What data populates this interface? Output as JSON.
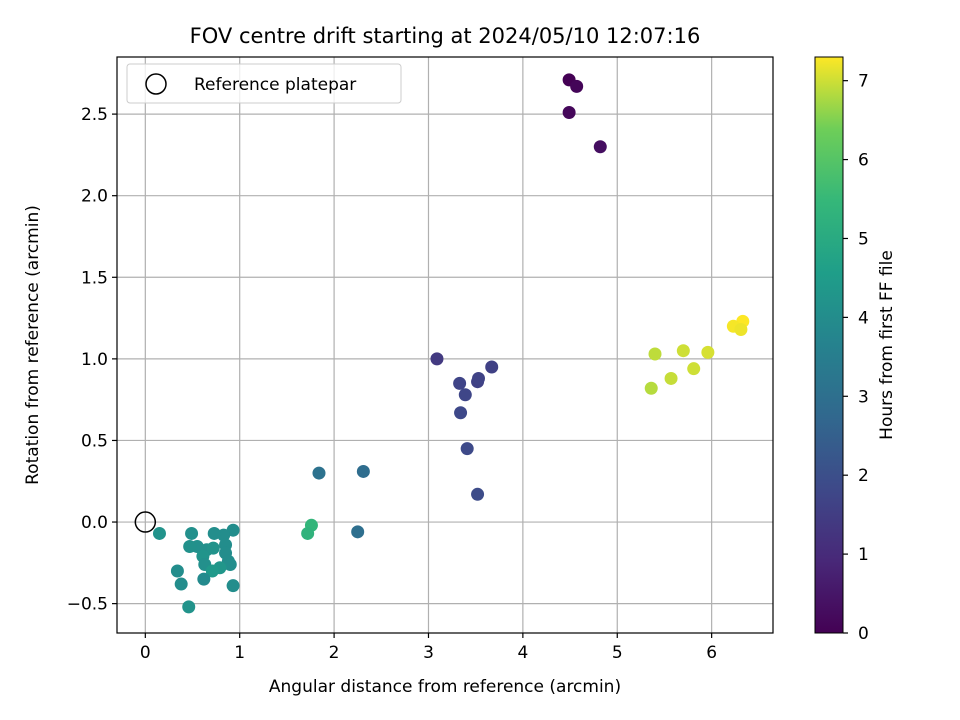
{
  "chart_data": {
    "type": "scatter",
    "title": "FOV centre drift starting at 2024/05/10 12:07:16",
    "xlabel": "Angular distance from reference (arcmin)",
    "ylabel": "Rotation from reference (arcmin)",
    "xlim": [
      -0.3,
      6.65
    ],
    "ylim": [
      -0.68,
      2.85
    ],
    "xticks": [
      0,
      1,
      2,
      3,
      4,
      5,
      6
    ],
    "yticks": [
      -0.5,
      0.0,
      0.5,
      1.0,
      1.5,
      2.0,
      2.5
    ],
    "grid": true,
    "legend": {
      "placement": "top-left",
      "entries": [
        "Reference platepar"
      ]
    },
    "reference_point": {
      "x": 0,
      "y": 0,
      "label": "Reference platepar"
    },
    "colorbar": {
      "label": "Hours from first FF file",
      "range": [
        0,
        7.3
      ],
      "ticks": [
        0,
        1,
        2,
        3,
        4,
        5,
        6,
        7
      ],
      "colormap": "viridis"
    },
    "points": [
      {
        "x": 4.49,
        "y": 2.71,
        "c": 0.0
      },
      {
        "x": 4.57,
        "y": 2.67,
        "c": 0.1
      },
      {
        "x": 4.49,
        "y": 2.51,
        "c": 0.15
      },
      {
        "x": 4.82,
        "y": 2.3,
        "c": 0.3
      },
      {
        "x": 3.09,
        "y": 1.0,
        "c": 1.4
      },
      {
        "x": 3.67,
        "y": 0.95,
        "c": 1.6
      },
      {
        "x": 3.52,
        "y": 0.86,
        "c": 1.6
      },
      {
        "x": 3.53,
        "y": 0.88,
        "c": 1.65
      },
      {
        "x": 3.33,
        "y": 0.85,
        "c": 1.7
      },
      {
        "x": 3.39,
        "y": 0.78,
        "c": 1.75
      },
      {
        "x": 3.34,
        "y": 0.67,
        "c": 1.8
      },
      {
        "x": 3.41,
        "y": 0.45,
        "c": 1.85
      },
      {
        "x": 3.52,
        "y": 0.17,
        "c": 1.9
      },
      {
        "x": 2.31,
        "y": 0.31,
        "c": 2.9
      },
      {
        "x": 1.84,
        "y": 0.3,
        "c": 3.1
      },
      {
        "x": 2.25,
        "y": -0.06,
        "c": 3.0
      },
      {
        "x": 0.93,
        "y": -0.05,
        "c": 4.0
      },
      {
        "x": 0.83,
        "y": -0.08,
        "c": 4.0
      },
      {
        "x": 0.73,
        "y": -0.07,
        "c": 4.05
      },
      {
        "x": 0.49,
        "y": -0.07,
        "c": 4.1
      },
      {
        "x": 0.15,
        "y": -0.07,
        "c": 4.2
      },
      {
        "x": 0.85,
        "y": -0.14,
        "c": 4.0
      },
      {
        "x": 0.55,
        "y": -0.15,
        "c": 4.1
      },
      {
        "x": 0.65,
        "y": -0.17,
        "c": 4.1
      },
      {
        "x": 0.47,
        "y": -0.15,
        "c": 4.15
      },
      {
        "x": 0.72,
        "y": -0.16,
        "c": 4.2
      },
      {
        "x": 0.85,
        "y": -0.19,
        "c": 4.0
      },
      {
        "x": 0.61,
        "y": -0.21,
        "c": 4.25
      },
      {
        "x": 0.88,
        "y": -0.24,
        "c": 4.0
      },
      {
        "x": 0.9,
        "y": -0.26,
        "c": 4.05
      },
      {
        "x": 0.63,
        "y": -0.26,
        "c": 4.1
      },
      {
        "x": 0.79,
        "y": -0.28,
        "c": 4.3
      },
      {
        "x": 0.71,
        "y": -0.3,
        "c": 4.4
      },
      {
        "x": 0.34,
        "y": -0.3,
        "c": 4.0
      },
      {
        "x": 0.62,
        "y": -0.35,
        "c": 3.9
      },
      {
        "x": 0.38,
        "y": -0.38,
        "c": 4.0
      },
      {
        "x": 0.93,
        "y": -0.39,
        "c": 4.0
      },
      {
        "x": 0.46,
        "y": -0.52,
        "c": 4.2
      },
      {
        "x": 1.76,
        "y": -0.02,
        "c": 5.4
      },
      {
        "x": 1.72,
        "y": -0.07,
        "c": 5.3
      },
      {
        "x": 6.33,
        "y": 1.23,
        "c": 7.3
      },
      {
        "x": 6.23,
        "y": 1.2,
        "c": 7.25
      },
      {
        "x": 6.31,
        "y": 1.18,
        "c": 7.2
      },
      {
        "x": 5.7,
        "y": 1.05,
        "c": 7.0
      },
      {
        "x": 5.96,
        "y": 1.04,
        "c": 7.05
      },
      {
        "x": 5.4,
        "y": 1.03,
        "c": 6.9
      },
      {
        "x": 5.81,
        "y": 0.94,
        "c": 7.0
      },
      {
        "x": 5.57,
        "y": 0.88,
        "c": 6.95
      },
      {
        "x": 5.36,
        "y": 0.82,
        "c": 6.85
      }
    ]
  }
}
